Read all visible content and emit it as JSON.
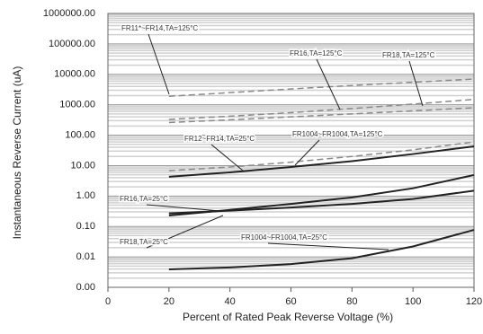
{
  "chart_data": {
    "type": "line",
    "x_label": "Percent of  Rated Peak Reverse Voltage (%)",
    "y_label": "Instantaneous Reverse Current (uA)",
    "xlim": [
      0,
      120
    ],
    "xticks": [
      0,
      20,
      40,
      60,
      80,
      100,
      120
    ],
    "ylim": [
      0.001,
      1000000
    ],
    "log_y": true,
    "grid": true,
    "yticks": [
      {
        "value": 0.001,
        "label": "0.00"
      },
      0.01,
      {
        "value": 0.1,
        "label": "0.10"
      },
      {
        "value": 1,
        "label": "1.00"
      },
      {
        "value": 10,
        "label": "10.00"
      },
      {
        "value": 100,
        "label": "100.00"
      },
      {
        "value": 1000,
        "label": "1000.00"
      },
      {
        "value": 10000,
        "label": "10000.00"
      },
      {
        "value": 100000,
        "label": "100000.00"
      },
      {
        "value": 1000000,
        "label": "1000000.00"
      }
    ],
    "x": [
      20,
      40,
      60,
      80,
      100,
      120
    ],
    "series": [
      {
        "color": "#8a8a8a",
        "dashed": true,
        "values": [
          1900,
          2500,
          3300,
          4300,
          5500,
          7000
        ]
      },
      {
        "color": "#8a8a8a",
        "dashed": true,
        "values": [
          330,
          420,
          550,
          750,
          1050,
          1500
        ]
      },
      {
        "color": "#8a8a8a",
        "dashed": true,
        "values": [
          260,
          320,
          400,
          500,
          630,
          800
        ]
      },
      {
        "color": "#8a8a8a",
        "dashed": true,
        "values": [
          6.8,
          9,
          13,
          20,
          33,
          60
        ]
      },
      {
        "color": "#222222",
        "dashed": false,
        "values": [
          4.3,
          6,
          9,
          14,
          24,
          43
        ]
      },
      {
        "color": "#222222",
        "dashed": false,
        "values": [
          0.23,
          0.35,
          0.55,
          0.9,
          1.8,
          4.9
        ]
      },
      {
        "color": "#222222",
        "dashed": false,
        "values": [
          0.27,
          0.33,
          0.42,
          0.55,
          0.8,
          1.5
        ]
      },
      {
        "color": "#222222",
        "dashed": false,
        "values": [
          0.0039,
          0.0045,
          0.0058,
          0.009,
          0.022,
          0.077
        ]
      }
    ],
    "annotations": [
      "FR11*~FR14,TA=125°C",
      "FR16,TA=125°C",
      "FR18,TA=125°C",
      "FR12~FR14,TA=25°C",
      "FR1004~FR1004,TA=125°C",
      "FR16,TA=25°C",
      "FR18,TA=25°C",
      "FR1004~FR1004,TA=25°C"
    ]
  }
}
